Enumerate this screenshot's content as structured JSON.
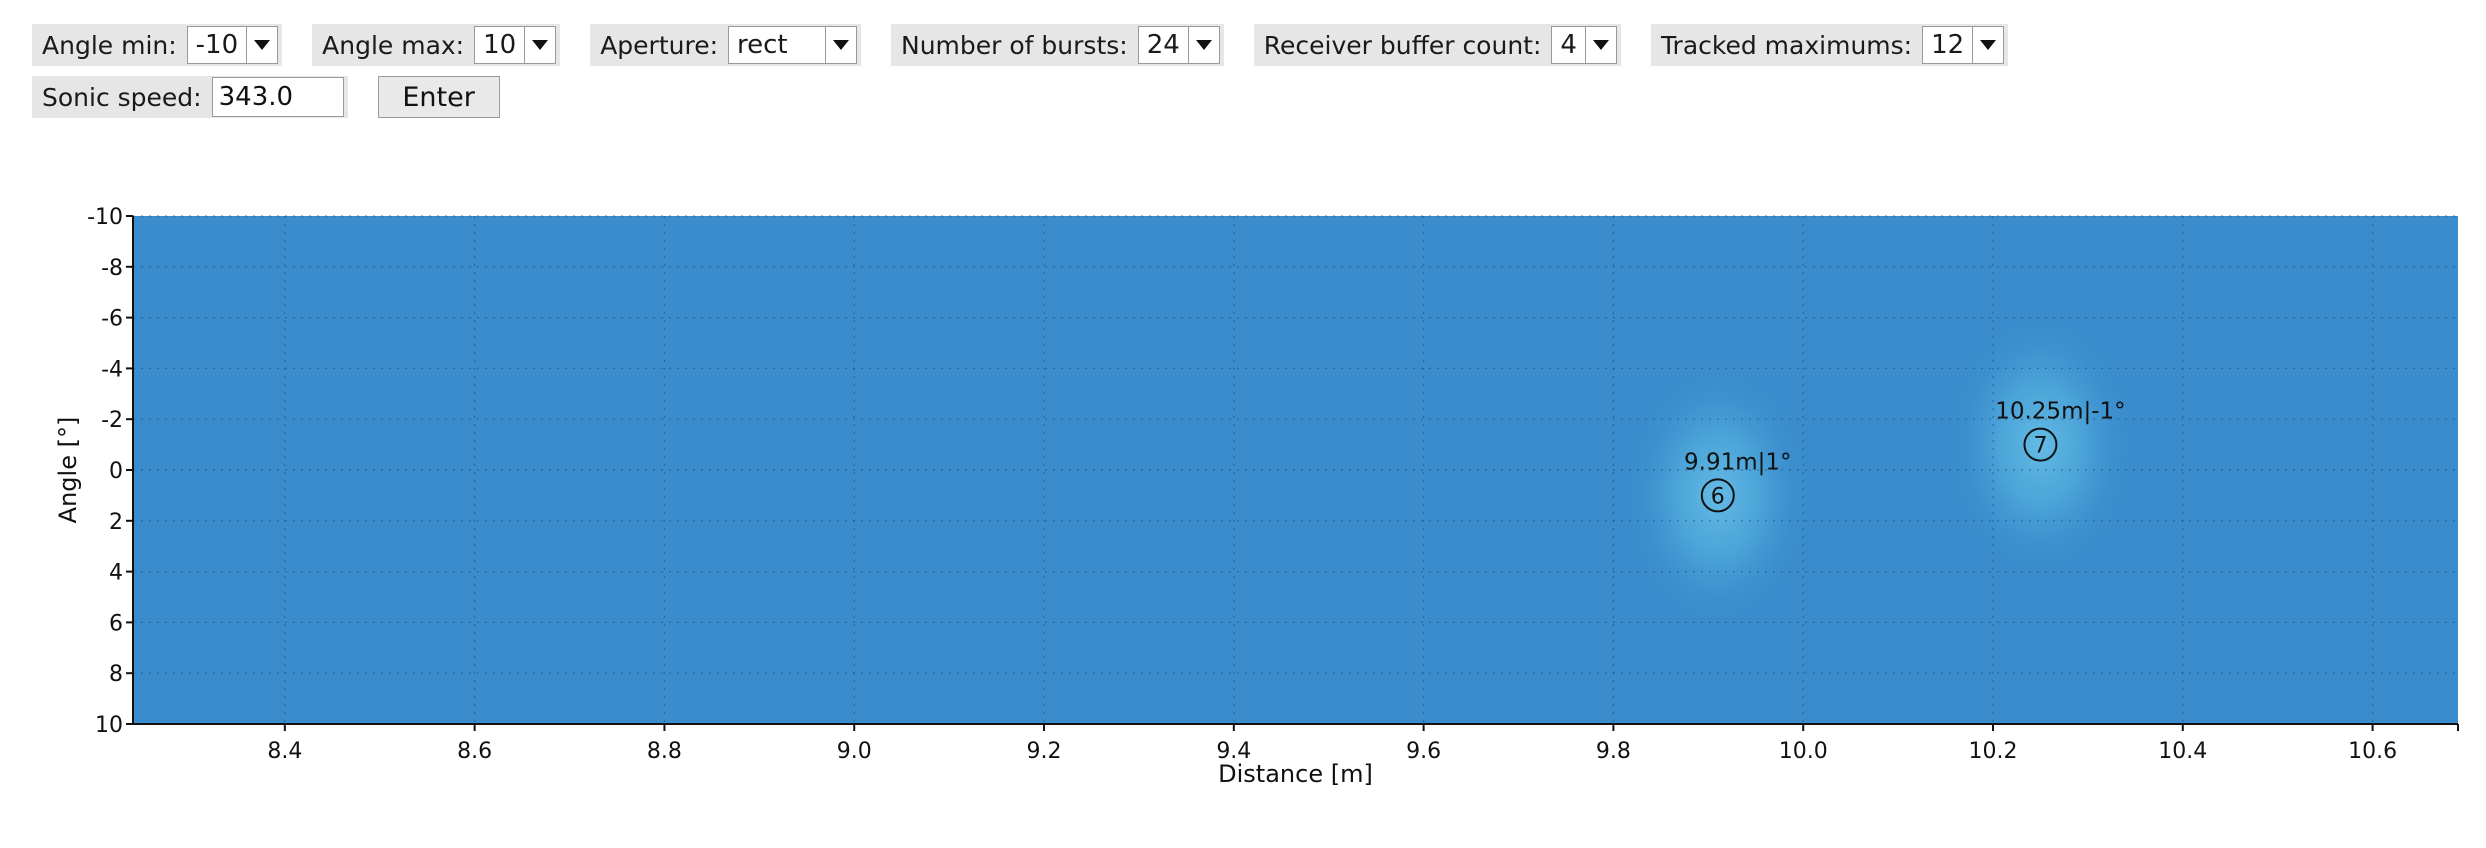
{
  "controls": {
    "angle_min": {
      "label": "Angle min:",
      "value": "-10"
    },
    "angle_max": {
      "label": "Angle max:",
      "value": "10"
    },
    "aperture": {
      "label": "Aperture:",
      "value": "rect"
    },
    "bursts": {
      "label": "Number of bursts:",
      "value": "24"
    },
    "buffer": {
      "label": "Receiver buffer count:",
      "value": "4"
    },
    "maximums": {
      "label": "Tracked maximums:",
      "value": "12"
    },
    "sonic_speed": {
      "label": "Sonic speed:",
      "value": "343.0"
    },
    "enter_label": "Enter"
  },
  "chart_data": {
    "type": "heatmap",
    "xlabel": "Distance [m]",
    "ylabel": "Angle [°]",
    "xlim": [
      8.24,
      10.69
    ],
    "ylim": [
      -10,
      10
    ],
    "y_inverted": true,
    "x_ticks": [
      "8.4",
      "8.6",
      "8.8",
      "9.0",
      "9.2",
      "9.4",
      "9.6",
      "9.8",
      "10.0",
      "10.2",
      "10.4",
      "10.6"
    ],
    "y_ticks": [
      "-10",
      "-8",
      "-6",
      "-4",
      "-2",
      "0",
      "2",
      "4",
      "6",
      "8",
      "10"
    ],
    "grid": true,
    "colors": {
      "background": "#3a8ccc",
      "highlight": "#5ab6e2"
    },
    "maxima": [
      {
        "id": "6",
        "distance": 9.91,
        "angle": 1,
        "label": "9.91m|1°"
      },
      {
        "id": "7",
        "distance": 10.25,
        "angle": -1,
        "label": "10.25m|-1°"
      }
    ]
  }
}
